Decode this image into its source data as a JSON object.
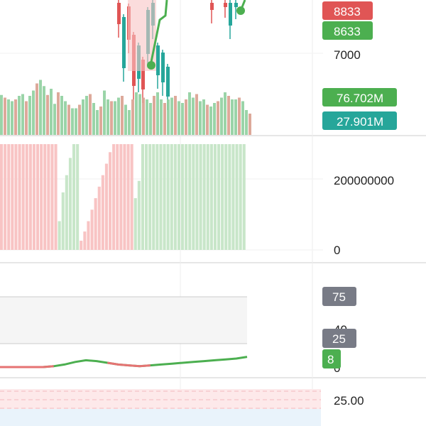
{
  "colors": {
    "up": "#4caf50",
    "down": "#e05555",
    "up_light": "#c8e6c9",
    "down_light": "#f8c4c4",
    "teal": "#26a69a",
    "grey_tag": "#787b86",
    "line_green": "#4caf50"
  },
  "price_panel": {
    "price_tags": [
      {
        "label": "8833",
        "color": "down"
      },
      {
        "label": "8633",
        "color": "up"
      }
    ],
    "axis_tick": "7000",
    "volume_tags": [
      {
        "label": "76.702M",
        "color": "up"
      },
      {
        "label": "27.901M",
        "color": "teal"
      }
    ]
  },
  "volume_panel": {
    "axis_ticks": [
      "200000000",
      "0"
    ]
  },
  "rsi_panel": {
    "tags": [
      {
        "label": "75",
        "color": "grey_tag"
      },
      {
        "label": "25",
        "color": "grey_tag"
      },
      {
        "label": "8",
        "color": "up"
      }
    ],
    "partial_ticks": [
      "40",
      "0"
    ]
  },
  "bottom_panel": {
    "axis_tick": "25.00"
  },
  "chart_data": [
    {
      "type": "bar",
      "panel": "price-volume",
      "description_series": "mixed up/down volume bars under candlesticks",
      "values": [
        45,
        42,
        40,
        38,
        40,
        44,
        46,
        38,
        44,
        50,
        58,
        62,
        55,
        45,
        52,
        35,
        48,
        44,
        38,
        34,
        30,
        30,
        34,
        40,
        44,
        46,
        36,
        28,
        32,
        50,
        40,
        38,
        38,
        42,
        44,
        34,
        28,
        40,
        48,
        46,
        42,
        40,
        36,
        44,
        48,
        40,
        36,
        40,
        42,
        44,
        38,
        36,
        40,
        48,
        42,
        46,
        38,
        40,
        34,
        32,
        36,
        38,
        42,
        48,
        44,
        40,
        40,
        42,
        38,
        28,
        24
      ],
      "ylim": [
        0,
        60
      ]
    },
    {
      "type": "bar",
      "panel": "volume",
      "values": [
        0.92,
        0.92,
        0.92,
        0.92,
        0.92,
        0.92,
        0.92,
        0.92,
        0.92,
        0.92,
        0.92,
        0.92,
        0.92,
        0.92,
        0.92,
        0.92,
        0.25,
        0.5,
        0.65,
        0.8,
        0.92,
        0.92,
        0.08,
        0.16,
        0.25,
        0.35,
        0.45,
        0.55,
        0.65,
        0.75,
        0.85,
        0.92,
        0.92,
        0.92,
        0.92,
        0.92,
        0.92,
        0.45,
        0.6,
        0.92,
        0.92,
        0.92,
        0.92,
        0.92,
        0.92,
        0.92,
        0.92,
        0.92,
        0.92,
        0.92,
        0.92,
        0.92,
        0.92,
        0.92,
        0.92,
        0.92,
        0.92,
        0.92,
        0.92,
        0.92,
        0.92,
        0.92,
        0.92,
        0.92,
        0.92,
        0.92,
        0.92,
        0.92
      ],
      "ylim": [
        0,
        1
      ]
    },
    {
      "type": "line",
      "panel": "rsi",
      "values": [
        0,
        0,
        0,
        0,
        0,
        1,
        3,
        6,
        8,
        7,
        5,
        3,
        2,
        1,
        2,
        3,
        4,
        5,
        6,
        7,
        8,
        9,
        10,
        12
      ],
      "ylim": [
        0,
        100
      ]
    }
  ]
}
